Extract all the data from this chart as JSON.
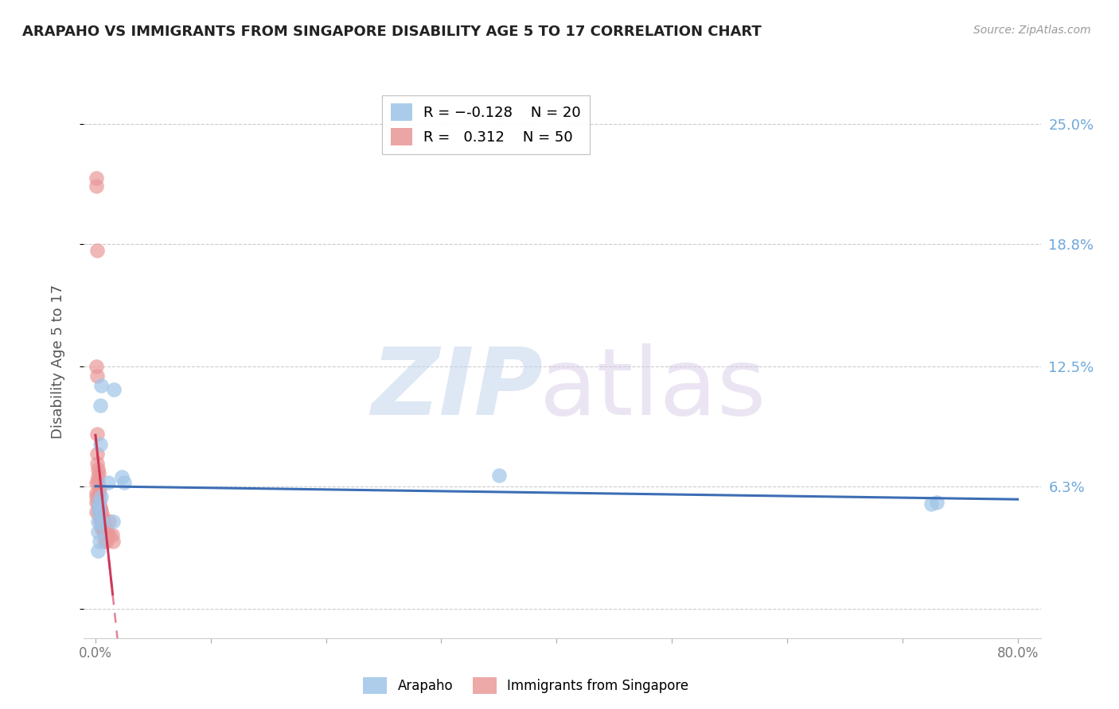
{
  "title": "ARAPAHO VS IMMIGRANTS FROM SINGAPORE DISABILITY AGE 5 TO 17 CORRELATION CHART",
  "source": "Source: ZipAtlas.com",
  "ylabel": "Disability Age 5 to 17",
  "blue_color": "#9fc5e8",
  "pink_color": "#ea9999",
  "trend_blue": "#3c6eb5",
  "trend_pink": "#cc3355",
  "legend_r1": "-0.128",
  "legend_n1": "20",
  "legend_r2": "0.312",
  "legend_n2": "50",
  "arapaho_x": [
    0.5,
    0.45,
    1.1,
    1.6,
    2.3,
    2.5,
    0.28,
    0.25,
    0.28,
    0.22,
    0.35,
    0.18,
    0.2,
    0.42,
    1.55,
    0.5,
    0.48,
    35.0,
    73.0,
    72.5
  ],
  "arapaho_y": [
    11.5,
    10.5,
    6.5,
    11.3,
    6.8,
    6.5,
    5.5,
    5.0,
    5.2,
    4.5,
    3.5,
    3.0,
    4.0,
    8.5,
    4.5,
    4.5,
    5.8,
    6.9,
    5.5,
    5.4
  ],
  "singapore_x": [
    0.1,
    0.08,
    0.12,
    0.1,
    0.11,
    0.15,
    0.14,
    0.16,
    0.2,
    0.19,
    0.21,
    0.25,
    0.24,
    0.26,
    0.3,
    0.29,
    0.31,
    0.32,
    0.35,
    0.34,
    0.36,
    0.4,
    0.39,
    0.41,
    0.5,
    0.48,
    0.52,
    0.51,
    0.6,
    0.58,
    0.62,
    0.7,
    0.68,
    0.72,
    0.8,
    0.78,
    0.82,
    0.9,
    0.88,
    1.0,
    0.98,
    1.2,
    1.18,
    1.5,
    1.48,
    0.05,
    0.04,
    0.06,
    0.05,
    0.07
  ],
  "singapore_y": [
    22.2,
    21.8,
    18.5,
    12.5,
    12.0,
    8.0,
    7.5,
    9.0,
    7.2,
    6.5,
    6.8,
    6.0,
    5.5,
    7.0,
    5.2,
    5.0,
    5.8,
    6.2,
    5.3,
    5.5,
    4.8,
    5.0,
    4.5,
    5.2,
    4.5,
    4.8,
    5.1,
    4.2,
    4.5,
    4.2,
    4.8,
    4.0,
    4.2,
    4.5,
    4.0,
    3.5,
    4.2,
    4.0,
    3.8,
    4.0,
    3.5,
    4.5,
    3.8,
    3.5,
    3.8,
    5.5,
    5.8,
    6.0,
    5.0,
    6.5
  ],
  "ytick_vals": [
    0.0,
    6.3,
    12.5,
    18.8,
    25.0
  ],
  "xtick_vals": [
    0.0,
    10.0,
    20.0,
    30.0,
    40.0,
    50.0,
    60.0,
    70.0,
    80.0
  ],
  "xlim": [
    -1.0,
    82.0
  ],
  "ylim": [
    -1.5,
    27.0
  ],
  "watermark_zip_color": "#c8d8ee",
  "watermark_atlas_color": "#d8cce8",
  "grid_color": "#cccccc",
  "axis_label_color": "#777777",
  "right_tick_color": "#6fa8dc",
  "title_color": "#222222",
  "source_color": "#999999"
}
